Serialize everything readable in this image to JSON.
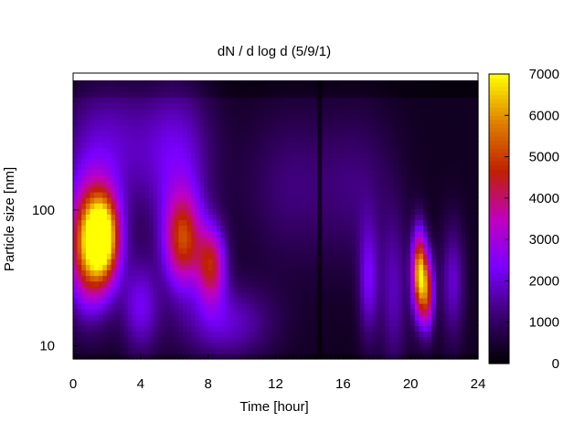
{
  "chart_data": {
    "type": "heatmap",
    "title": "dN / d log d (5/9/1)",
    "xlabel": "Time [hour]",
    "ylabel": "Particle size [nm]",
    "x_range": [
      0,
      24
    ],
    "y_range_nm": [
      8,
      900
    ],
    "y_scale": "log",
    "x_ticks": [
      0,
      4,
      8,
      12,
      16,
      20,
      24
    ],
    "x_tick_labels": [
      "0",
      "4",
      "8",
      "12",
      "16",
      "20",
      "24"
    ],
    "y_ticks": [
      10,
      100
    ],
    "y_tick_labels": [
      "10",
      "100"
    ],
    "colorbar": {
      "range": [
        0,
        7000
      ],
      "ticks": [
        0,
        1000,
        2000,
        3000,
        4000,
        5000,
        6000,
        7000
      ],
      "tick_labels": [
        "0",
        "1000",
        "2000",
        "3000",
        "4000",
        "5000",
        "6000",
        "7000"
      ],
      "colormap": [
        "#000000",
        "#3a0070",
        "#7a00ff",
        "#c000c0",
        "#c02000",
        "#e08000",
        "#ffff00"
      ]
    },
    "background_level": 350,
    "features": [
      {
        "t": 1.0,
        "d_nm": 55,
        "peak": 5300,
        "t_width": 1.0,
        "d_width_log10": 0.32
      },
      {
        "t": 1.8,
        "d_nm": 65,
        "peak": 4800,
        "t_width": 0.7,
        "d_width_log10": 0.22
      },
      {
        "t": 6.5,
        "d_nm": 60,
        "peak": 4300,
        "t_width": 0.8,
        "d_width_log10": 0.25
      },
      {
        "t": 8.2,
        "d_nm": 40,
        "peak": 3800,
        "t_width": 0.6,
        "d_width_log10": 0.2
      },
      {
        "t": 2.0,
        "d_nm": 300,
        "peak": 1500,
        "t_width": 2.0,
        "d_width_log10": 0.35
      },
      {
        "t": 6.2,
        "d_nm": 250,
        "peak": 1700,
        "t_width": 1.5,
        "d_width_log10": 0.4
      },
      {
        "t": 9.0,
        "d_nm": 15,
        "peak": 1600,
        "t_width": 2.0,
        "d_width_log10": 0.2
      },
      {
        "t": 4.0,
        "d_nm": 20,
        "peak": 1800,
        "t_width": 0.8,
        "d_width_log10": 0.25
      },
      {
        "t": 20.5,
        "d_nm": 35,
        "peak": 5600,
        "t_width": 0.3,
        "d_width_log10": 0.22
      },
      {
        "t": 21.0,
        "d_nm": 25,
        "peak": 4000,
        "t_width": 0.3,
        "d_width_log10": 0.2
      },
      {
        "t": 17.5,
        "d_nm": 30,
        "peak": 1800,
        "t_width": 0.4,
        "d_width_log10": 0.3
      },
      {
        "t": 19.0,
        "d_nm": 25,
        "peak": 1400,
        "t_width": 0.6,
        "d_width_log10": 0.4
      },
      {
        "t": 22.5,
        "d_nm": 30,
        "peak": 1600,
        "t_width": 0.5,
        "d_width_log10": 0.3
      },
      {
        "t": 13.0,
        "d_nm": 150,
        "peak": 900,
        "t_width": 2.0,
        "d_width_log10": 0.4
      },
      {
        "t": 17.0,
        "d_nm": 150,
        "peak": 800,
        "t_width": 1.5,
        "d_width_log10": 0.4
      }
    ],
    "dark_stripe_time": 14.7
  }
}
